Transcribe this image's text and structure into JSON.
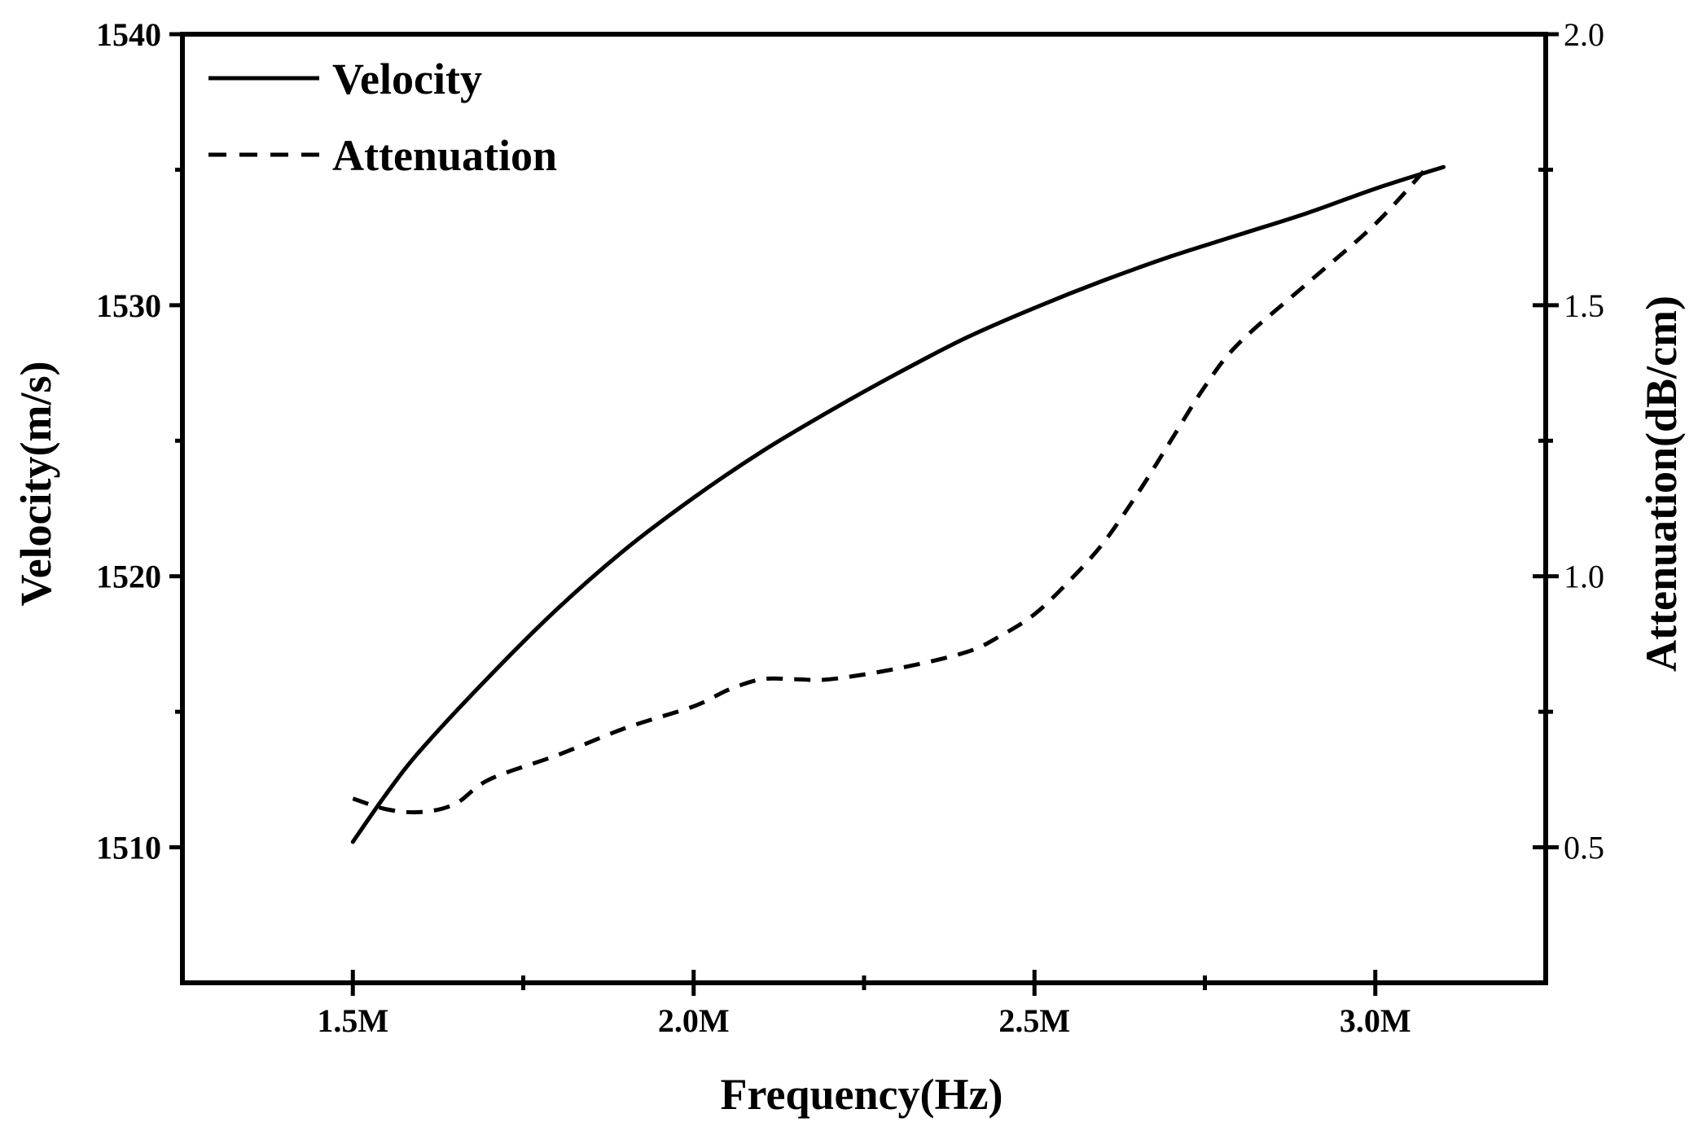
{
  "chart_data": {
    "type": "line",
    "xlabel": "Frequency(Hz)",
    "ylabel": "Velocity(m/s)",
    "y2label": "Attenuation(dB/cm)",
    "xlim": [
      1250000,
      3250000
    ],
    "ylim": [
      1505,
      1540
    ],
    "y2lim": [
      0.25,
      2.0
    ],
    "x_ticks": [
      {
        "value": 1500000,
        "label": "1.5M"
      },
      {
        "value": 2000000,
        "label": "2.0M"
      },
      {
        "value": 2500000,
        "label": "2.5M"
      },
      {
        "value": 3000000,
        "label": "3.0M"
      }
    ],
    "y_ticks": [
      {
        "value": 1510,
        "label": "1510"
      },
      {
        "value": 1520,
        "label": "1520"
      },
      {
        "value": 1530,
        "label": "1530"
      },
      {
        "value": 1540,
        "label": "1540"
      }
    ],
    "y2_ticks": [
      {
        "value": 0.5,
        "label": "0.5"
      },
      {
        "value": 1.0,
        "label": "1.0"
      },
      {
        "value": 1.5,
        "label": "1.5"
      },
      {
        "value": 2.0,
        "label": "2.0"
      }
    ],
    "legend_position": "top-left",
    "grid": false,
    "series": [
      {
        "name": "Velocity",
        "axis": "left",
        "style": "solid",
        "color": "#000000",
        "x": [
          1500000,
          1550000,
          1600000,
          1700000,
          1800000,
          1900000,
          2000000,
          2100000,
          2200000,
          2300000,
          2400000,
          2500000,
          2600000,
          2700000,
          2800000,
          2900000,
          3000000,
          3100000
        ],
        "y": [
          1510.2,
          1512.0,
          1513.6,
          1516.3,
          1518.8,
          1521.0,
          1522.9,
          1524.6,
          1526.1,
          1527.5,
          1528.8,
          1529.9,
          1530.9,
          1531.8,
          1532.6,
          1533.4,
          1534.3,
          1535.1
        ]
      },
      {
        "name": "Attenuation",
        "axis": "right",
        "style": "dashed",
        "color": "#000000",
        "x": [
          1500000,
          1550000,
          1600000,
          1650000,
          1700000,
          1800000,
          1900000,
          2000000,
          2050000,
          2100000,
          2150000,
          2200000,
          2300000,
          2400000,
          2450000,
          2500000,
          2550000,
          2600000,
          2650000,
          2700000,
          2750000,
          2800000,
          2900000,
          3000000,
          3080000
        ],
        "y": [
          0.59,
          0.57,
          0.565,
          0.58,
          0.625,
          0.67,
          0.72,
          0.76,
          0.79,
          0.81,
          0.81,
          0.81,
          0.83,
          0.86,
          0.89,
          0.93,
          0.99,
          1.06,
          1.15,
          1.25,
          1.35,
          1.43,
          1.54,
          1.65,
          1.76
        ]
      }
    ]
  }
}
